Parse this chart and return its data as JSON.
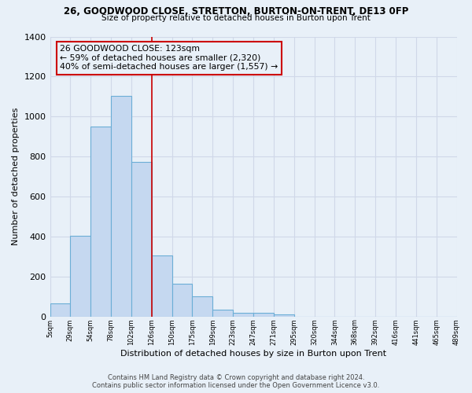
{
  "title1": "26, GOODWOOD CLOSE, STRETTON, BURTON-ON-TRENT, DE13 0FP",
  "title2": "Size of property relative to detached houses in Burton upon Trent",
  "xlabel": "Distribution of detached houses by size in Burton upon Trent",
  "ylabel": "Number of detached properties",
  "footer1": "Contains HM Land Registry data © Crown copyright and database right 2024.",
  "footer2": "Contains public sector information licensed under the Open Government Licence v3.0.",
  "bin_labels": [
    "5sqm",
    "29sqm",
    "54sqm",
    "78sqm",
    "102sqm",
    "126sqm",
    "150sqm",
    "175sqm",
    "199sqm",
    "223sqm",
    "247sqm",
    "271sqm",
    "295sqm",
    "320sqm",
    "344sqm",
    "368sqm",
    "392sqm",
    "416sqm",
    "441sqm",
    "465sqm",
    "489sqm"
  ],
  "bar_values": [
    65,
    405,
    950,
    1105,
    775,
    305,
    165,
    100,
    35,
    18,
    18,
    10,
    0,
    0,
    0,
    0,
    0,
    0,
    0,
    0
  ],
  "bar_color": "#c5d8f0",
  "bar_edge_color": "#6baed6",
  "property_size_bar_index": 4,
  "vline_color": "#cc0000",
  "annotation_text": "26 GOODWOOD CLOSE: 123sqm\n← 59% of detached houses are smaller (2,320)\n40% of semi-detached houses are larger (1,557) →",
  "annotation_box_color": "#cc0000",
  "ylim": [
    0,
    1400
  ],
  "background_color": "#e8f0f8",
  "grid_color": "#d0d8e8",
  "n_bins": 20,
  "n_labels": 21
}
